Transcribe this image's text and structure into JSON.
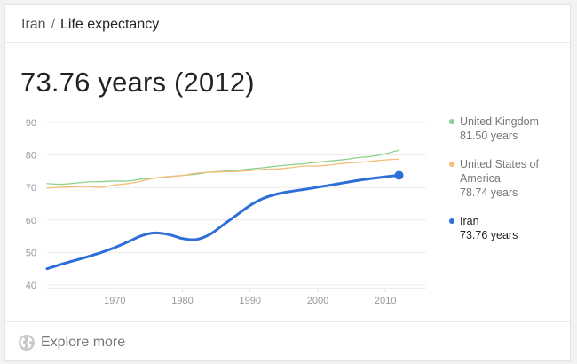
{
  "breadcrumb": {
    "country": "Iran",
    "separator": "/",
    "topic": "Life expectancy"
  },
  "headline": "73.76 years (2012)",
  "footer": {
    "explore_label": "Explore more",
    "icon": "globe-icon"
  },
  "colors": {
    "uk": "#8cd18c",
    "usa": "#f5be78",
    "iran": "#2e6ed8",
    "legend_text_muted": "#777777",
    "legend_text_active": "#222222"
  },
  "legend": [
    {
      "key": "uk",
      "name": "United Kingdom",
      "value": "81.50 years",
      "active": false
    },
    {
      "key": "usa",
      "name": "United States of America",
      "value": "78.74 years",
      "active": false
    },
    {
      "key": "iran",
      "name": "Iran",
      "value": "73.76 years",
      "active": true
    }
  ],
  "chart_data": {
    "type": "line",
    "title": "",
    "xlabel": "",
    "ylabel": "",
    "xlim": [
      1960,
      2016
    ],
    "ylim": [
      40,
      90
    ],
    "x_ticks": [
      1970,
      1980,
      1990,
      2000,
      2010
    ],
    "y_ticks": [
      40,
      50,
      60,
      70,
      80,
      90
    ],
    "grid": true,
    "legend_position": "right",
    "series": [
      {
        "key": "uk",
        "name": "United Kingdom",
        "x": [
          1960,
          1962,
          1964,
          1966,
          1968,
          1970,
          1972,
          1974,
          1976,
          1978,
          1980,
          1982,
          1984,
          1986,
          1988,
          1990,
          1992,
          1994,
          1996,
          1998,
          2000,
          2002,
          2004,
          2006,
          2008,
          2010,
          2012
        ],
        "y": [
          71.2,
          71.0,
          71.3,
          71.7,
          71.8,
          72.0,
          72.0,
          72.6,
          72.9,
          73.3,
          73.7,
          74.1,
          74.7,
          75.0,
          75.3,
          75.7,
          76.1,
          76.6,
          77.0,
          77.3,
          77.8,
          78.2,
          78.6,
          79.2,
          79.6,
          80.4,
          81.5
        ]
      },
      {
        "key": "usa",
        "name": "United States of America",
        "x": [
          1960,
          1962,
          1964,
          1966,
          1968,
          1970,
          1972,
          1974,
          1976,
          1978,
          1980,
          1982,
          1984,
          1986,
          1988,
          1990,
          1992,
          1994,
          1996,
          1998,
          2000,
          2002,
          2004,
          2006,
          2008,
          2010,
          2012
        ],
        "y": [
          69.8,
          70.1,
          70.2,
          70.3,
          70.1,
          70.8,
          71.2,
          72.0,
          72.9,
          73.4,
          73.7,
          74.4,
          74.7,
          74.8,
          74.9,
          75.2,
          75.6,
          75.7,
          76.1,
          76.6,
          76.6,
          77.0,
          77.5,
          77.7,
          78.1,
          78.5,
          78.74
        ]
      },
      {
        "key": "iran",
        "name": "Iran",
        "x": [
          1960,
          1962,
          1964,
          1966,
          1968,
          1970,
          1972,
          1974,
          1976,
          1978,
          1980,
          1982,
          1984,
          1986,
          1988,
          1990,
          1992,
          1994,
          1996,
          1998,
          2000,
          2002,
          2004,
          2006,
          2008,
          2010,
          2012
        ],
        "y": [
          45.0,
          46.3,
          47.5,
          48.7,
          50.0,
          51.5,
          53.3,
          55.2,
          56.0,
          55.5,
          54.3,
          54.0,
          55.5,
          58.5,
          61.5,
          64.5,
          66.7,
          68.0,
          68.8,
          69.4,
          70.1,
          70.8,
          71.5,
          72.2,
          72.8,
          73.3,
          73.76
        ]
      }
    ]
  }
}
